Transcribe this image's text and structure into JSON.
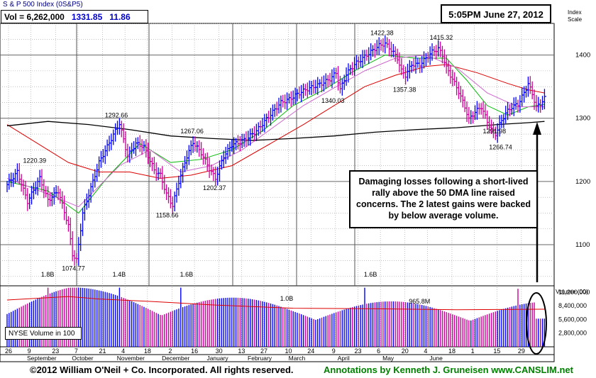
{
  "header": {
    "index_label": "S & P 500 Index",
    "index_symbol": "(0S&P5)",
    "vol_label": "Vol = 6,262,000",
    "price": "1331.85",
    "change": "11.86",
    "timestamp": "5:05PM June 27, 2012"
  },
  "annotation": "Damaging losses following a short-lived rally above the 50 DMA line raised concerns. The 2 latest gains were backed by below average volume.",
  "nyse_label": "NYSE Volume in 100",
  "footer": {
    "copyright": "©2012 William O'Neil + Co. Incorporated. All rights reserved.",
    "credit": "Annotations by Kenneth J. Gruneisen www.CANSLIM.net"
  },
  "colors": {
    "up": "#0000ff",
    "down": "#cc0099",
    "ma50": "#00bb00",
    "ma200": "#000000",
    "ma_red": "#dd0000",
    "ma_violet": "#cc66cc",
    "annotation_green": "#008000"
  },
  "chart_data": {
    "type": "bar",
    "subtype": "ohlc-price-volume",
    "price_axis": {
      "label": "Index Scale",
      "ticks": [
        "1100",
        "1200",
        "1300",
        "1400"
      ],
      "ylim": [
        1035,
        1450
      ]
    },
    "volume_axis": {
      "label": "Volume (00)",
      "ticks": [
        "11,200,000",
        "8,400,000",
        "5,600,000",
        "2,800,000"
      ],
      "ylim": [
        0,
        12500000
      ]
    },
    "x_tick_labels": [
      "26",
      "9",
      "23",
      "7",
      "21",
      "4",
      "18",
      "2",
      "16",
      "30",
      "13",
      "27",
      "10",
      "24",
      "9",
      "23",
      "6",
      "20",
      "4",
      "18",
      "1",
      "15",
      "29"
    ],
    "month_labels": [
      "September",
      "October",
      "November",
      "December",
      "January",
      "February",
      "March",
      "April",
      "May",
      "June"
    ],
    "price_annotations": [
      {
        "text": "1220.39",
        "value": 1220.39
      },
      {
        "text": "1074.77",
        "value": 1074.77
      },
      {
        "text": "1292.66",
        "value": 1292.66
      },
      {
        "text": "1158.66",
        "value": 1158.66
      },
      {
        "text": "1267.06",
        "value": 1267.06
      },
      {
        "text": "1202.37",
        "value": 1202.37
      },
      {
        "text": "1340.03",
        "value": 1340.03
      },
      {
        "text": "1422.38",
        "value": 1422.38
      },
      {
        "text": "1357.38",
        "value": 1357.38
      },
      {
        "text": "1415.32",
        "value": 1415.32
      },
      {
        "text": "1291.98",
        "value": 1291.98
      },
      {
        "text": "1266.74",
        "value": 1266.74
      }
    ],
    "volume_annotations": [
      "1.8B",
      "1.4B",
      "1.6B",
      "1.0B",
      "1.6B",
      "965.8M"
    ],
    "price_anchors": [
      [
        0,
        1195
      ],
      [
        5,
        1215
      ],
      [
        10,
        1168
      ],
      [
        16,
        1205
      ],
      [
        20,
        1170
      ],
      [
        25,
        1185
      ],
      [
        30,
        1130
      ],
      [
        32,
        1085
      ],
      [
        34,
        1075
      ],
      [
        37,
        1150
      ],
      [
        41,
        1190
      ],
      [
        45,
        1230
      ],
      [
        49,
        1255
      ],
      [
        53,
        1280
      ],
      [
        55,
        1292
      ],
      [
        59,
        1240
      ],
      [
        63,
        1260
      ],
      [
        67,
        1255
      ],
      [
        72,
        1218
      ],
      [
        75,
        1210
      ],
      [
        78,
        1180
      ],
      [
        81,
        1162
      ],
      [
        84,
        1200
      ],
      [
        88,
        1240
      ],
      [
        91,
        1262
      ],
      [
        95,
        1245
      ],
      [
        99,
        1220
      ],
      [
        102,
        1205
      ],
      [
        106,
        1240
      ],
      [
        110,
        1258
      ],
      [
        114,
        1262
      ],
      [
        118,
        1270
      ],
      [
        122,
        1280
      ],
      [
        126,
        1295
      ],
      [
        130,
        1310
      ],
      [
        134,
        1325
      ],
      [
        138,
        1330
      ],
      [
        142,
        1338
      ],
      [
        146,
        1345
      ],
      [
        150,
        1350
      ],
      [
        154,
        1355
      ],
      [
        158,
        1362
      ],
      [
        161,
        1372
      ],
      [
        163,
        1345
      ],
      [
        166,
        1370
      ],
      [
        170,
        1385
      ],
      [
        174,
        1395
      ],
      [
        178,
        1405
      ],
      [
        182,
        1415
      ],
      [
        185,
        1418
      ],
      [
        188,
        1408
      ],
      [
        191,
        1395
      ],
      [
        193,
        1375
      ],
      [
        195,
        1368
      ],
      [
        198,
        1385
      ],
      [
        202,
        1385
      ],
      [
        205,
        1395
      ],
      [
        208,
        1405
      ],
      [
        211,
        1410
      ],
      [
        213,
        1400
      ],
      [
        215,
        1380
      ],
      [
        218,
        1362
      ],
      [
        221,
        1342
      ],
      [
        224,
        1318
      ],
      [
        226,
        1298
      ],
      [
        229,
        1310
      ],
      [
        232,
        1318
      ],
      [
        235,
        1295
      ],
      [
        237,
        1282
      ],
      [
        239,
        1275
      ],
      [
        241,
        1290
      ],
      [
        244,
        1308
      ],
      [
        247,
        1318
      ],
      [
        250,
        1322
      ],
      [
        253,
        1340
      ],
      [
        255,
        1355
      ],
      [
        257,
        1338
      ],
      [
        259,
        1318
      ],
      [
        261,
        1322
      ],
      [
        262,
        1328
      ],
      [
        263,
        1332
      ]
    ],
    "moving_averages": {
      "ma50_green": [
        [
          0,
          1200
        ],
        [
          20,
          1185
        ],
        [
          35,
          1150
        ],
        [
          50,
          1210
        ],
        [
          65,
          1260
        ],
        [
          80,
          1230
        ],
        [
          95,
          1235
        ],
        [
          110,
          1250
        ],
        [
          125,
          1280
        ],
        [
          140,
          1320
        ],
        [
          155,
          1345
        ],
        [
          170,
          1375
        ],
        [
          185,
          1400
        ],
        [
          200,
          1395
        ],
        [
          215,
          1395
        ],
        [
          225,
          1360
        ],
        [
          235,
          1320
        ],
        [
          245,
          1305
        ],
        [
          255,
          1318
        ],
        [
          263,
          1322
        ]
      ],
      "ma_red": [
        [
          0,
          1290
        ],
        [
          15,
          1260
        ],
        [
          30,
          1230
        ],
        [
          45,
          1215
        ],
        [
          60,
          1215
        ],
        [
          75,
          1205
        ],
        [
          90,
          1210
        ],
        [
          110,
          1225
        ],
        [
          130,
          1262
        ],
        [
          145,
          1290
        ],
        [
          160,
          1320
        ],
        [
          175,
          1350
        ],
        [
          190,
          1368
        ],
        [
          205,
          1382
        ],
        [
          215,
          1385
        ],
        [
          230,
          1372
        ],
        [
          245,
          1355
        ],
        [
          255,
          1345
        ],
        [
          263,
          1340
        ]
      ],
      "ma_violet": [
        [
          0,
          1205
        ],
        [
          20,
          1180
        ],
        [
          35,
          1160
        ],
        [
          55,
          1225
        ],
        [
          70,
          1250
        ],
        [
          85,
          1215
        ],
        [
          100,
          1225
        ],
        [
          115,
          1250
        ],
        [
          130,
          1285
        ],
        [
          145,
          1320
        ],
        [
          160,
          1348
        ],
        [
          175,
          1375
        ],
        [
          190,
          1395
        ],
        [
          205,
          1400
        ],
        [
          220,
          1380
        ],
        [
          235,
          1340
        ],
        [
          250,
          1318
        ],
        [
          263,
          1318
        ]
      ],
      "ma200_black": [
        [
          0,
          1288
        ],
        [
          20,
          1295
        ],
        [
          40,
          1290
        ],
        [
          60,
          1282
        ],
        [
          80,
          1272
        ],
        [
          100,
          1268
        ],
        [
          120,
          1265
        ],
        [
          140,
          1268
        ],
        [
          160,
          1272
        ],
        [
          180,
          1278
        ],
        [
          200,
          1282
        ],
        [
          220,
          1285
        ],
        [
          240,
          1290
        ],
        [
          255,
          1293
        ],
        [
          263,
          1295
        ]
      ]
    },
    "volume_average": [
      [
        0,
        9600000
      ],
      [
        30,
        10300000
      ],
      [
        45,
        9800000
      ],
      [
        70,
        9300000
      ],
      [
        100,
        8600000
      ],
      [
        140,
        7900000
      ],
      [
        180,
        7800000
      ],
      [
        220,
        7600000
      ],
      [
        263,
        7700000
      ]
    ],
    "grid": true
  }
}
